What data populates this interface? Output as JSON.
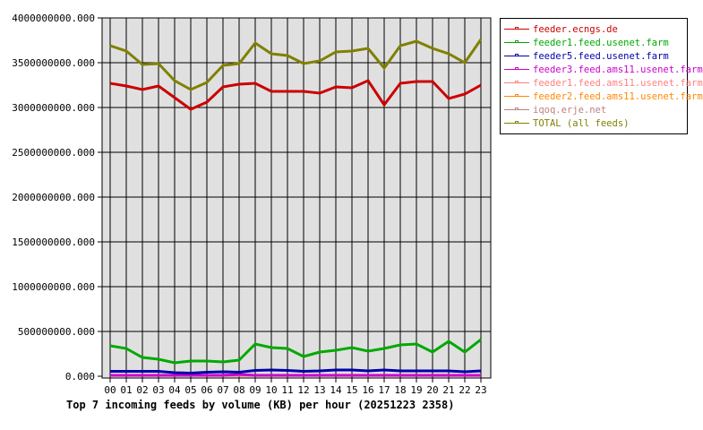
{
  "chart_data": {
    "type": "line",
    "title": "Top 7 incoming feeds by volume (KB) per hour (20251223 2358)",
    "xlabel": "",
    "ylabel": "",
    "ylim": [
      0,
      4000000000
    ],
    "grid": true,
    "legend_position": "right",
    "y_ticks": [
      "0.000",
      "500000000.000",
      "1000000000.000",
      "1500000000.000",
      "2000000000.000",
      "2500000000.000",
      "3000000000.000",
      "3500000000.000",
      "4000000000.000"
    ],
    "categories": [
      "00",
      "01",
      "02",
      "03",
      "04",
      "05",
      "06",
      "07",
      "08",
      "09",
      "10",
      "11",
      "12",
      "13",
      "14",
      "15",
      "16",
      "17",
      "18",
      "19",
      "20",
      "21",
      "22",
      "23"
    ],
    "series": [
      {
        "name": "feeder.ecngs.de",
        "color": "#cc0000",
        "values": [
          3270000000,
          3240000000,
          3200000000,
          3240000000,
          3110000000,
          2980000000,
          3060000000,
          3230000000,
          3260000000,
          3270000000,
          3180000000,
          3180000000,
          3180000000,
          3160000000,
          3230000000,
          3220000000,
          3300000000,
          3030000000,
          3270000000,
          3290000000,
          3290000000,
          3100000000,
          3150000000,
          3250000000
        ]
      },
      {
        "name": "feeder1.feed.usenet.farm",
        "color": "#00aa00",
        "values": [
          340000000,
          310000000,
          210000000,
          190000000,
          150000000,
          170000000,
          170000000,
          160000000,
          180000000,
          360000000,
          320000000,
          310000000,
          220000000,
          270000000,
          290000000,
          320000000,
          280000000,
          310000000,
          350000000,
          360000000,
          270000000,
          390000000,
          270000000,
          410000000
        ]
      },
      {
        "name": "feeder5.feed.usenet.farm",
        "color": "#0000aa",
        "values": [
          55000000,
          55000000,
          55000000,
          55000000,
          40000000,
          35000000,
          45000000,
          50000000,
          45000000,
          65000000,
          70000000,
          65000000,
          55000000,
          60000000,
          70000000,
          70000000,
          60000000,
          70000000,
          60000000,
          60000000,
          60000000,
          60000000,
          50000000,
          60000000
        ]
      },
      {
        "name": "feeder3.feed.ams11.usenet.farm",
        "color": "#cc00cc",
        "values": [
          0,
          0,
          0,
          0,
          0,
          0,
          0,
          0,
          20000000,
          0,
          0,
          0,
          0,
          0,
          0,
          0,
          0,
          0,
          0,
          0,
          0,
          0,
          0,
          0
        ]
      },
      {
        "name": "feeder1.feed.ams11.usenet.farm",
        "color": "#ff8080",
        "values": [
          0,
          0,
          0,
          0,
          0,
          0,
          0,
          0,
          0,
          0,
          0,
          0,
          0,
          0,
          0,
          0,
          0,
          0,
          0,
          0,
          0,
          0,
          0,
          0
        ]
      },
      {
        "name": "feeder2.feed.ams11.usenet.farm",
        "color": "#ff8800",
        "values": [
          0,
          0,
          0,
          0,
          0,
          0,
          0,
          0,
          0,
          0,
          0,
          0,
          0,
          0,
          0,
          0,
          0,
          0,
          0,
          0,
          0,
          0,
          0,
          0
        ]
      },
      {
        "name": "iqoq.erje.net",
        "color": "#c08080",
        "values": [
          5000000,
          5000000,
          5000000,
          5000000,
          5000000,
          5000000,
          5000000,
          5000000,
          5000000,
          5000000,
          5000000,
          5000000,
          5000000,
          5000000,
          5000000,
          5000000,
          5000000,
          5000000,
          5000000,
          5000000,
          5000000,
          5000000,
          5000000,
          5000000
        ]
      },
      {
        "name": "TOTAL (all feeds)",
        "color": "#808000",
        "values": [
          3690000000,
          3630000000,
          3480000000,
          3490000000,
          3300000000,
          3200000000,
          3280000000,
          3470000000,
          3490000000,
          3720000000,
          3600000000,
          3580000000,
          3490000000,
          3520000000,
          3620000000,
          3630000000,
          3660000000,
          3440000000,
          3690000000,
          3740000000,
          3660000000,
          3600000000,
          3500000000,
          3760000000
        ]
      }
    ]
  },
  "legend": {
    "items": [
      {
        "label": "feeder.ecngs.de",
        "color": "#cc0000"
      },
      {
        "label": "feeder1.feed.usenet.farm",
        "color": "#00aa00"
      },
      {
        "label": "feeder5.feed.usenet.farm",
        "color": "#0000aa"
      },
      {
        "label": "feeder3.feed.ams11.usenet.farm",
        "color": "#cc00cc"
      },
      {
        "label": "feeder1.feed.ams11.usenet.farm",
        "color": "#ff8080"
      },
      {
        "label": "feeder2.feed.ams11.usenet.farm",
        "color": "#ff8800"
      },
      {
        "label": "iqoq.erje.net",
        "color": "#c08080"
      },
      {
        "label": "TOTAL (all feeds)",
        "color": "#808000"
      }
    ]
  },
  "caption": "Top 7 incoming feeds by volume (KB) per hour (20251223 2358)"
}
